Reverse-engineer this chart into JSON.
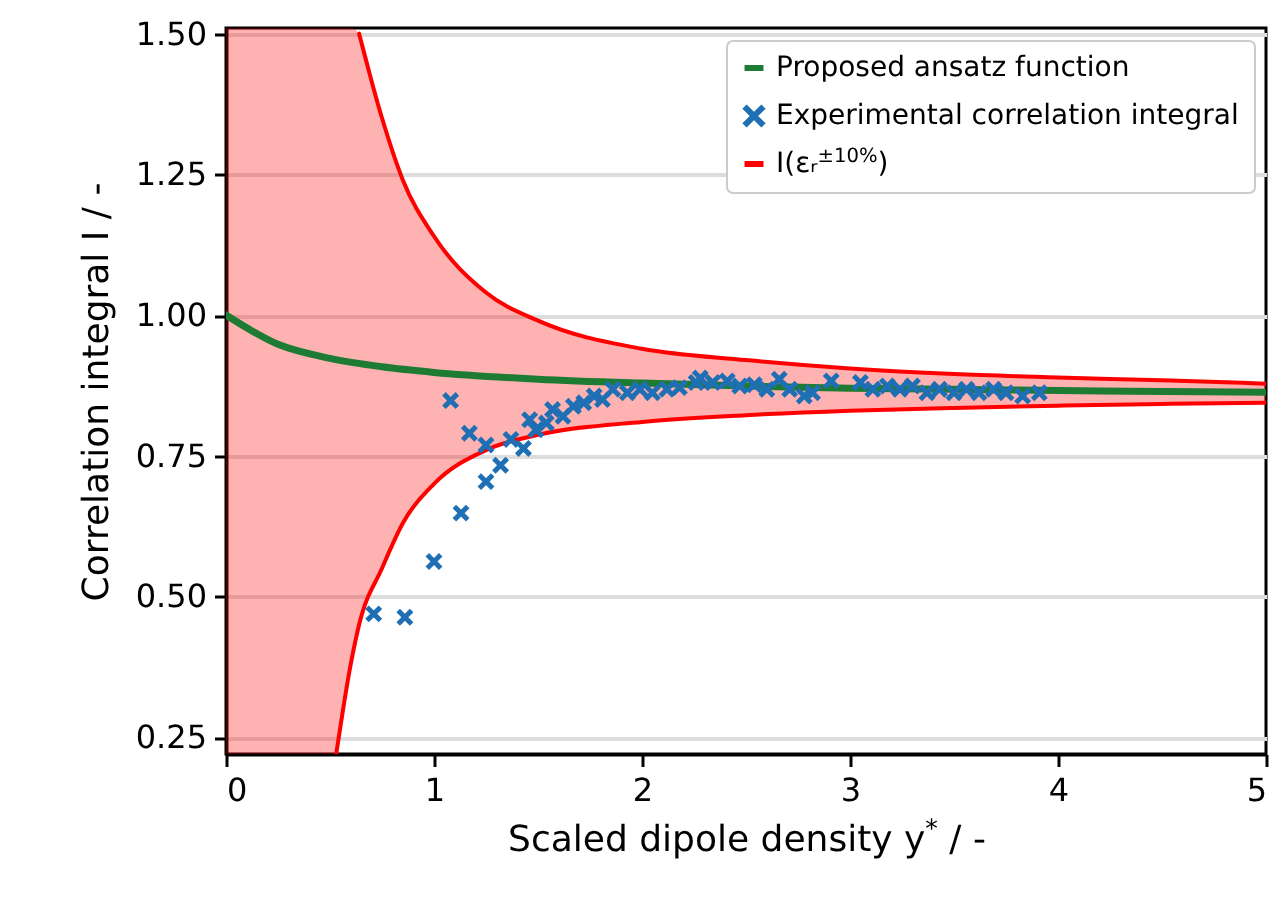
{
  "chart_data": {
    "type": "line",
    "xlabel": "Scaled dipole density y$^{*}$ / -",
    "ylabel": "Correlation integral I / -",
    "xlim": [
      0,
      5
    ],
    "xticks": [
      0,
      1,
      2,
      3,
      4,
      5
    ],
    "ylim": [
      0.22,
      1.51
    ],
    "yticks": [
      0.25,
      {
        "value": 0.5,
        "label": "0.50"
      },
      0.75,
      {
        "value": 1,
        "label": "1.00"
      },
      1.25,
      {
        "value": 1.5,
        "label": "1.50"
      }
    ],
    "grid": "y",
    "legend": "top right",
    "series": [
      {
        "name": "Proposed ansatz function",
        "color": "#1e7b34",
        "x": [
          0,
          0.25,
          0.5,
          0.75,
          1,
          1.5,
          2,
          2.5,
          3,
          3.5,
          4,
          4.5,
          5
        ],
        "values": [
          1.0,
          0.948,
          0.923,
          0.908,
          0.898,
          0.886,
          0.879,
          0.874,
          0.87,
          0.868,
          0.866,
          0.864,
          0.863
        ]
      },
      {
        "name": "Experimental correlation integral",
        "type": "scatter",
        "color": "#1f6fb4",
        "marker": "cross",
        "x": [
          0.71,
          0.86,
          1.0,
          1.13,
          1.25,
          1.08,
          1.17,
          1.25,
          1.32,
          1.37,
          1.43,
          1.46,
          1.49,
          1.54,
          1.57,
          1.62,
          1.67,
          1.72,
          1.77,
          1.81,
          1.86,
          1.93,
          1.99,
          2.05,
          2.12,
          2.18,
          2.26,
          2.28,
          2.34,
          2.41,
          2.47,
          2.54,
          2.6,
          2.66,
          2.71,
          2.78,
          2.82,
          2.91,
          3.05,
          3.11,
          3.18,
          3.24,
          3.3,
          3.37,
          3.43,
          3.5,
          3.56,
          3.62,
          3.69,
          3.75,
          3.83,
          3.91
        ],
        "values": [
          0.469,
          0.463,
          0.562,
          0.648,
          0.704,
          0.848,
          0.79,
          0.769,
          0.733,
          0.779,
          0.763,
          0.814,
          0.796,
          0.808,
          0.832,
          0.82,
          0.838,
          0.844,
          0.856,
          0.85,
          0.868,
          0.862,
          0.868,
          0.862,
          0.868,
          0.871,
          0.88,
          0.888,
          0.88,
          0.883,
          0.874,
          0.876,
          0.868,
          0.886,
          0.868,
          0.856,
          0.862,
          0.883,
          0.88,
          0.868,
          0.874,
          0.868,
          0.874,
          0.862,
          0.868,
          0.862,
          0.868,
          0.862,
          0.868,
          0.862,
          0.856,
          0.862
        ]
      },
      {
        "name": "I(εᵣ$^{±10%}$)",
        "color": "#ff0000",
        "x": [
          0,
          0.25,
          0.5,
          0.53,
          0.6,
          0.64,
          0.75,
          0.85,
          1,
          1.25,
          1.5,
          2,
          2.5,
          3,
          3.5,
          4,
          4.5,
          5
        ],
        "values": [
          null,
          null,
          null,
          null,
          null,
          1.5,
          1.35,
          1.24,
          1.14,
          1.04,
          0.99,
          0.94,
          0.92,
          0.905,
          0.895,
          0.889,
          0.884,
          0.878
        ],
        "lower": [
          0.22,
          0.22,
          0.22,
          0.22,
          0.38,
          0.45,
          0.55,
          0.63,
          0.7,
          0.76,
          0.787,
          0.81,
          0.822,
          0.83,
          0.835,
          0.839,
          0.842,
          0.844
        ],
        "upper": [
          1.51,
          1.51,
          1.51,
          1.51,
          1.51,
          1.5,
          1.35,
          1.24,
          1.14,
          1.04,
          0.99,
          0.94,
          0.92,
          0.905,
          0.895,
          0.889,
          0.884,
          0.878
        ]
      },
      {
        "color": "#ff0000",
        "x": [
          0.53,
          0.6,
          0.64,
          0.75,
          0.85,
          1,
          1.25,
          1.5,
          2,
          2.5,
          3,
          3.5,
          4,
          4.5,
          5
        ],
        "values": [
          0.22,
          0.38,
          0.45,
          0.55,
          0.63,
          0.7,
          0.76,
          0.787,
          0.81,
          0.822,
          0.83,
          0.835,
          0.839,
          0.842,
          0.844
        ]
      }
    ]
  }
}
